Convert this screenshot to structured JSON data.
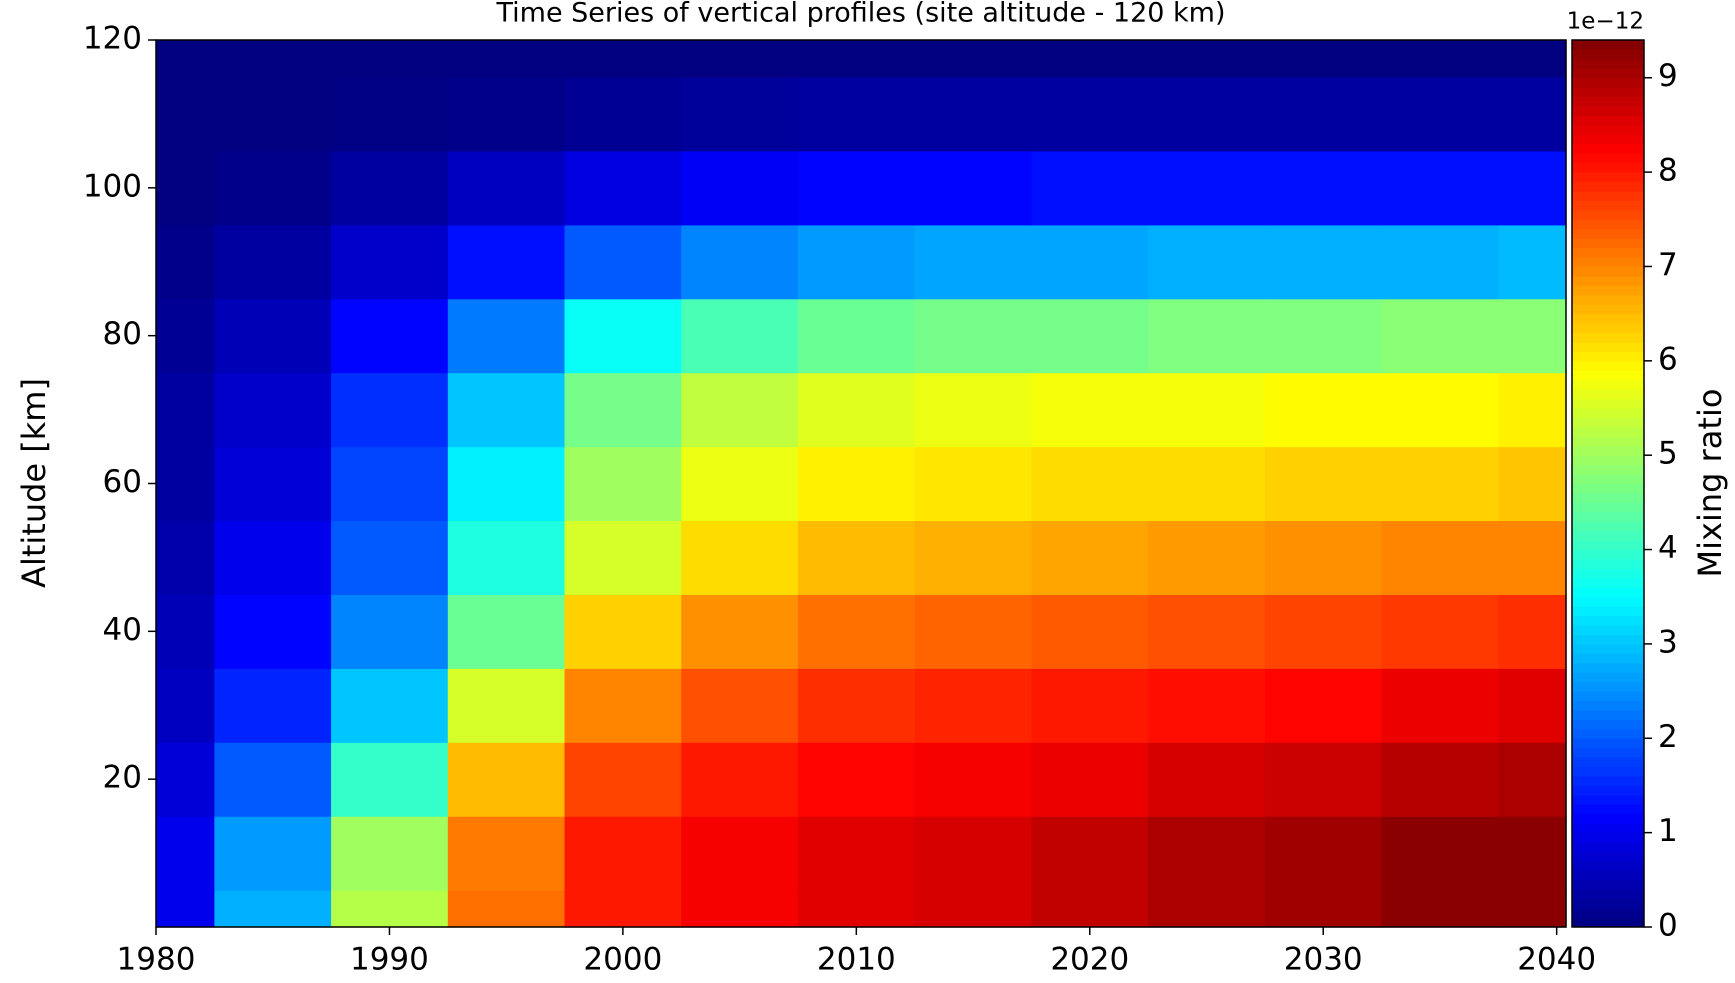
{
  "chart_data": {
    "type": "contour",
    "title": "Time Series of vertical profiles (site altitude - 120 km)",
    "ylabel": "Altitude [km]",
    "colorbar_label": "Mixing ratio",
    "colorbar_offset": "1e−12",
    "colormap": "jet",
    "x": [
      1980,
      1985,
      1990,
      1995,
      2000,
      2005,
      2010,
      2015,
      2020,
      2025,
      2030,
      2035,
      2040
    ],
    "y": [
      0,
      10,
      20,
      30,
      40,
      50,
      60,
      70,
      80,
      90,
      100,
      110,
      120
    ],
    "z": [
      [
        1.0,
        2.8,
        5.2,
        7.2,
        8.0,
        8.3,
        8.5,
        8.6,
        8.8,
        9.0,
        9.1,
        9.3,
        9.3
      ],
      [
        1.0,
        2.6,
        5.0,
        7.1,
        8.0,
        8.3,
        8.5,
        8.6,
        8.8,
        9.0,
        9.1,
        9.3,
        9.3
      ],
      [
        0.8,
        2.0,
        4.0,
        6.5,
        7.6,
        8.0,
        8.2,
        8.3,
        8.4,
        8.6,
        8.7,
        8.9,
        9.0
      ],
      [
        0.6,
        1.5,
        3.0,
        5.5,
        7.0,
        7.5,
        7.8,
        7.9,
        8.0,
        8.1,
        8.2,
        8.4,
        8.5
      ],
      [
        0.5,
        1.2,
        2.4,
        4.5,
        6.3,
        6.9,
        7.2,
        7.3,
        7.4,
        7.5,
        7.6,
        7.7,
        7.8
      ],
      [
        0.4,
        1.0,
        2.0,
        3.8,
        5.5,
        6.2,
        6.5,
        6.6,
        6.7,
        6.8,
        6.9,
        7.0,
        7.0
      ],
      [
        0.3,
        0.8,
        1.8,
        3.4,
        5.0,
        5.7,
        6.0,
        6.1,
        6.2,
        6.2,
        6.3,
        6.3,
        6.4
      ],
      [
        0.3,
        0.7,
        1.6,
        3.0,
        4.6,
        5.3,
        5.6,
        5.7,
        5.8,
        5.8,
        5.9,
        5.9,
        6.0
      ],
      [
        0.2,
        0.5,
        1.2,
        2.3,
        3.6,
        4.2,
        4.5,
        4.6,
        4.6,
        4.7,
        4.7,
        4.8,
        4.8
      ],
      [
        0.1,
        0.3,
        0.7,
        1.3,
        2.0,
        2.4,
        2.6,
        2.7,
        2.7,
        2.8,
        2.8,
        2.8,
        2.9
      ],
      [
        0.0,
        0.1,
        0.3,
        0.6,
        0.9,
        1.1,
        1.2,
        1.2,
        1.3,
        1.3,
        1.3,
        1.3,
        1.3
      ],
      [
        0.0,
        0.0,
        0.05,
        0.1,
        0.2,
        0.25,
        0.3,
        0.3,
        0.3,
        0.3,
        0.3,
        0.3,
        0.3
      ],
      [
        0,
        0,
        0,
        0,
        0,
        0,
        0,
        0,
        0,
        0,
        0,
        0,
        0
      ]
    ],
    "xlim": [
      1980,
      2040.4
    ],
    "ylim": [
      0,
      120
    ],
    "xticks": [
      1980,
      1990,
      2000,
      2010,
      2020,
      2030,
      2040
    ],
    "yticks": [
      20,
      40,
      60,
      80,
      100,
      120
    ],
    "clim": [
      0,
      9.4
    ],
    "cticks": [
      0,
      1,
      2,
      3,
      4,
      5,
      6,
      7,
      8,
      9
    ]
  }
}
